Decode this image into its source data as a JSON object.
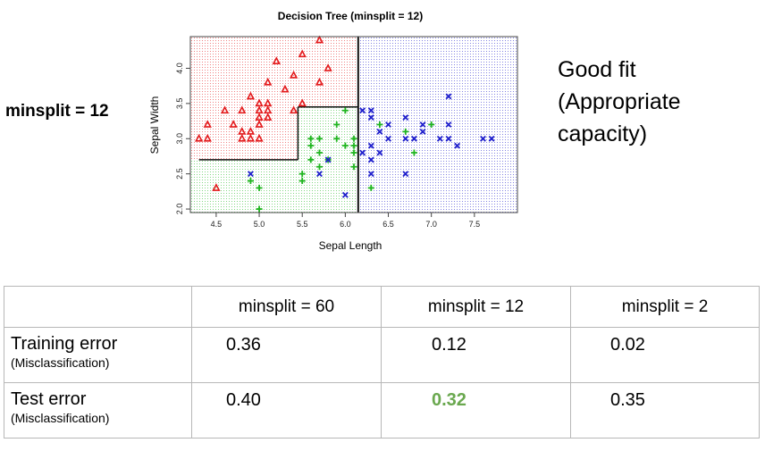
{
  "side_label": "minsplit = 12",
  "annotation": {
    "line1": "Good fit",
    "line2": "(Appropriate",
    "line3": "capacity)"
  },
  "colors": {
    "setosa": "#e31a1c",
    "versicolor": "#1fb51f",
    "virginica": "#1f1fcc",
    "highlight": "#6aa84f"
  },
  "chart_data": {
    "type": "scatter",
    "title": "Decision Tree (minsplit = 12)",
    "xlabel": "Sepal Length",
    "ylabel": "Sepal Width",
    "xlim": [
      4.2,
      8.0
    ],
    "ylim": [
      1.95,
      4.45
    ],
    "xticks": [
      "4.5",
      "5.0",
      "5.5",
      "6.0",
      "6.5",
      "7.0",
      "7.5"
    ],
    "yticks": [
      "2.0",
      "2.5",
      "3.0",
      "3.5",
      "4.0"
    ],
    "grid": false,
    "regions": [
      {
        "class": "setosa",
        "x": [
          4.2,
          5.45
        ],
        "y": [
          2.7,
          4.45
        ]
      },
      {
        "class": "setosa",
        "x": [
          5.45,
          6.15
        ],
        "y": [
          3.45,
          4.45
        ]
      },
      {
        "class": "versicolor",
        "x": [
          4.2,
          5.45
        ],
        "y": [
          1.95,
          2.7
        ]
      },
      {
        "class": "versicolor",
        "x": [
          5.45,
          6.15
        ],
        "y": [
          1.95,
          3.45
        ]
      },
      {
        "class": "virginica",
        "x": [
          6.15,
          8.0
        ],
        "y": [
          1.95,
          4.45
        ]
      }
    ],
    "boundaries": [
      {
        "x": [
          4.3,
          5.45
        ],
        "y": [
          2.7,
          2.7
        ]
      },
      {
        "x": [
          5.45,
          5.45
        ],
        "y": [
          2.7,
          3.45
        ]
      },
      {
        "x": [
          5.45,
          6.15
        ],
        "y": [
          3.45,
          3.45
        ]
      },
      {
        "x": [
          6.15,
          6.15
        ],
        "y": [
          1.95,
          4.45
        ]
      }
    ],
    "series": [
      {
        "class": "setosa",
        "marker": "triangle",
        "points": [
          [
            4.3,
            3.0
          ],
          [
            4.4,
            3.0
          ],
          [
            4.4,
            3.2
          ],
          [
            4.5,
            2.3
          ],
          [
            4.6,
            3.4
          ],
          [
            4.7,
            3.2
          ],
          [
            4.8,
            3.4
          ],
          [
            4.8,
            3.1
          ],
          [
            4.8,
            3.0
          ],
          [
            4.9,
            3.1
          ],
          [
            4.9,
            3.0
          ],
          [
            4.9,
            3.6
          ],
          [
            5.0,
            3.5
          ],
          [
            5.0,
            3.4
          ],
          [
            5.0,
            3.3
          ],
          [
            5.0,
            3.2
          ],
          [
            5.0,
            3.0
          ],
          [
            5.1,
            3.5
          ],
          [
            5.1,
            3.4
          ],
          [
            5.1,
            3.3
          ],
          [
            5.1,
            3.8
          ],
          [
            5.2,
            4.1
          ],
          [
            5.3,
            3.7
          ],
          [
            5.4,
            3.9
          ],
          [
            5.4,
            3.4
          ],
          [
            5.5,
            4.2
          ],
          [
            5.5,
            3.5
          ],
          [
            5.7,
            4.4
          ],
          [
            5.7,
            3.8
          ],
          [
            5.8,
            4.0
          ]
        ]
      },
      {
        "class": "versicolor",
        "marker": "plus",
        "points": [
          [
            4.9,
            2.4
          ],
          [
            5.0,
            2.0
          ],
          [
            5.0,
            2.3
          ],
          [
            5.5,
            2.4
          ],
          [
            5.5,
            2.5
          ],
          [
            5.6,
            2.7
          ],
          [
            5.6,
            2.9
          ],
          [
            5.6,
            3.0
          ],
          [
            5.7,
            2.6
          ],
          [
            5.7,
            2.8
          ],
          [
            5.7,
            3.0
          ],
          [
            5.8,
            2.7
          ],
          [
            5.9,
            3.0
          ],
          [
            6.0,
            3.4
          ],
          [
            6.0,
            2.9
          ],
          [
            6.1,
            2.9
          ],
          [
            6.1,
            3.0
          ],
          [
            6.1,
            2.8
          ],
          [
            6.1,
            2.6
          ],
          [
            6.3,
            2.3
          ],
          [
            6.4,
            3.2
          ],
          [
            6.7,
            3.1
          ],
          [
            6.8,
            2.8
          ],
          [
            7.0,
            3.2
          ],
          [
            5.9,
            3.2
          ]
        ]
      },
      {
        "class": "virginica",
        "marker": "cross",
        "points": [
          [
            4.9,
            2.5
          ],
          [
            5.7,
            2.5
          ],
          [
            5.8,
            2.7
          ],
          [
            6.0,
            2.2
          ],
          [
            6.2,
            3.4
          ],
          [
            6.3,
            3.3
          ],
          [
            6.3,
            2.9
          ],
          [
            6.3,
            2.7
          ],
          [
            6.3,
            2.5
          ],
          [
            6.3,
            3.4
          ],
          [
            6.4,
            3.1
          ],
          [
            6.4,
            2.8
          ],
          [
            6.5,
            3.0
          ],
          [
            6.7,
            3.3
          ],
          [
            6.7,
            3.0
          ],
          [
            6.7,
            2.5
          ],
          [
            6.8,
            3.0
          ],
          [
            6.9,
            3.1
          ],
          [
            6.9,
            3.2
          ],
          [
            7.1,
            3.0
          ],
          [
            7.2,
            3.6
          ],
          [
            7.2,
            3.2
          ],
          [
            7.2,
            3.0
          ],
          [
            7.3,
            2.9
          ],
          [
            7.6,
            3.0
          ],
          [
            7.7,
            3.0
          ],
          [
            6.2,
            2.8
          ],
          [
            6.5,
            3.2
          ]
        ]
      }
    ]
  },
  "table": {
    "headers": [
      "",
      "minsplit = 60",
      "minsplit = 12",
      "minsplit = 2"
    ],
    "rows": [
      {
        "label": "Training error",
        "sublabel": "(Misclassification)",
        "values": [
          "0.36",
          "0.12",
          "0.02"
        ]
      },
      {
        "label": "Test error",
        "sublabel": "(Misclassification)",
        "values": [
          "0.40",
          "0.32",
          "0.35"
        ]
      }
    ]
  }
}
